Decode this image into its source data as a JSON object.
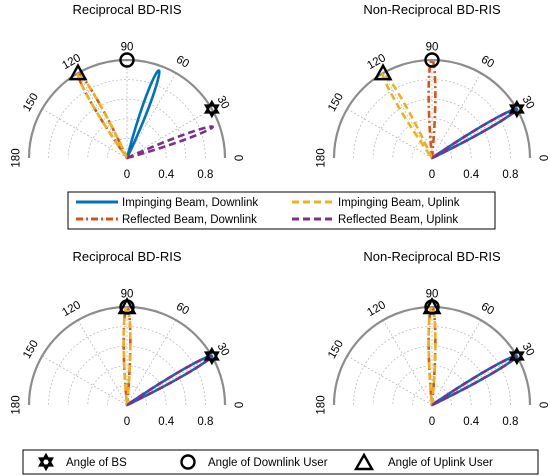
{
  "chart_data": [
    {
      "type": "polar-line",
      "title": "Reciprocal BD-RIS",
      "theta_ticks": [
        "0",
        "30",
        "60",
        "90",
        "120",
        "150",
        "180"
      ],
      "r_ticks": [
        "0",
        "0.4",
        "0.8"
      ],
      "rlim": [
        0,
        1
      ],
      "series": [
        {
          "name": "Impinging Beam, Downlink",
          "color": "#0072BD",
          "dash": "solid",
          "peak_angle_deg": 70,
          "peak_r": 0.95,
          "lobe_width": 0.25
        },
        {
          "name": "Reflected Beam, Downlink",
          "color": "#D95319",
          "dash": "dashdot",
          "peak_angle_deg": 120,
          "peak_r": 1.0,
          "lobe_width": 0.25
        },
        {
          "name": "Impinging Beam, Uplink",
          "color": "#EDB120",
          "dash": "dashed",
          "peak_angle_deg": 120,
          "peak_r": 1.0,
          "lobe_width": 0.25
        },
        {
          "name": "Reflected Beam, Uplink",
          "color": "#7E2F8E",
          "dash": "dashed",
          "peak_angle_deg": 20,
          "peak_r": 0.93,
          "lobe_width": 0.2,
          "double_line": true
        }
      ],
      "markers": {
        "bs_deg": 30,
        "downlink_user_deg": 90,
        "uplink_user_deg": 120
      }
    },
    {
      "type": "polar-line",
      "title": "Non-Reciprocal BD-RIS",
      "theta_ticks": [
        "0",
        "30",
        "60",
        "90",
        "120",
        "150",
        "180"
      ],
      "r_ticks": [
        "0",
        "0.4",
        "0.8"
      ],
      "rlim": [
        0,
        1
      ],
      "series": [
        {
          "name": "Impinging Beam, Downlink",
          "color": "#0072BD",
          "dash": "solid",
          "peak_angle_deg": 30,
          "peak_r": 1.0,
          "lobe_width": 0.2
        },
        {
          "name": "Reflected Beam, Downlink",
          "color": "#D95319",
          "dash": "dashdot",
          "peak_angle_deg": 90,
          "peak_r": 1.0,
          "lobe_width": 0.25
        },
        {
          "name": "Impinging Beam, Uplink",
          "color": "#EDB120",
          "dash": "dashed",
          "peak_angle_deg": 120,
          "peak_r": 1.0,
          "lobe_width": 0.25
        },
        {
          "name": "Reflected Beam, Uplink",
          "color": "#7E2F8E",
          "dash": "dashed",
          "peak_angle_deg": 30,
          "peak_r": 1.0,
          "lobe_width": 0.2
        }
      ],
      "markers": {
        "bs_deg": 30,
        "downlink_user_deg": 90,
        "uplink_user_deg": 120
      }
    },
    {
      "type": "polar-line",
      "title": "Reciprocal BD-RIS",
      "theta_ticks": [
        "0",
        "30",
        "60",
        "90",
        "120",
        "150",
        "180"
      ],
      "r_ticks": [
        "0",
        "0.4",
        "0.8"
      ],
      "rlim": [
        0,
        1
      ],
      "series": [
        {
          "name": "Impinging Beam, Downlink",
          "color": "#0072BD",
          "dash": "solid",
          "peak_angle_deg": 30,
          "peak_r": 1.0,
          "lobe_width": 0.2
        },
        {
          "name": "Reflected Beam, Downlink",
          "color": "#D95319",
          "dash": "dashdot",
          "peak_angle_deg": 90,
          "peak_r": 1.0,
          "lobe_width": 0.25
        },
        {
          "name": "Impinging Beam, Uplink",
          "color": "#EDB120",
          "dash": "dashed",
          "peak_angle_deg": 90,
          "peak_r": 1.0,
          "lobe_width": 0.25
        },
        {
          "name": "Reflected Beam, Uplink",
          "color": "#7E2F8E",
          "dash": "dashed",
          "peak_angle_deg": 30,
          "peak_r": 1.0,
          "lobe_width": 0.2
        }
      ],
      "markers": {
        "bs_deg": 30,
        "downlink_user_deg": 90,
        "uplink_user_deg": 90
      }
    },
    {
      "type": "polar-line",
      "title": "Non-Reciprocal BD-RIS",
      "theta_ticks": [
        "0",
        "30",
        "60",
        "90",
        "120",
        "150",
        "180"
      ],
      "r_ticks": [
        "0",
        "0.4",
        "0.8"
      ],
      "rlim": [
        0,
        1
      ],
      "series": [
        {
          "name": "Impinging Beam, Downlink",
          "color": "#0072BD",
          "dash": "solid",
          "peak_angle_deg": 30,
          "peak_r": 1.0,
          "lobe_width": 0.2
        },
        {
          "name": "Reflected Beam, Downlink",
          "color": "#D95319",
          "dash": "dashdot",
          "peak_angle_deg": 90,
          "peak_r": 1.0,
          "lobe_width": 0.25
        },
        {
          "name": "Impinging Beam, Uplink",
          "color": "#EDB120",
          "dash": "dashed",
          "peak_angle_deg": 90,
          "peak_r": 1.0,
          "lobe_width": 0.25
        },
        {
          "name": "Reflected Beam, Uplink",
          "color": "#7E2F8E",
          "dash": "dashed",
          "peak_angle_deg": 30,
          "peak_r": 1.0,
          "lobe_width": 0.2
        }
      ],
      "markers": {
        "bs_deg": 30,
        "downlink_user_deg": 90,
        "uplink_user_deg": 90
      }
    }
  ],
  "legend_lines": [
    {
      "label": "Impinging Beam, Downlink",
      "color": "#0072BD",
      "dash": "solid"
    },
    {
      "label": "Impinging Beam, Uplink",
      "color": "#EDB120",
      "dash": "dashed"
    },
    {
      "label": "Reflected Beam, Downlink",
      "color": "#D95319",
      "dash": "dashdot"
    },
    {
      "label": "Reflected Beam, Uplink",
      "color": "#7E2F8E",
      "dash": "dashed"
    }
  ],
  "legend_markers": [
    {
      "label": "Angle of BS",
      "icon": "hexagram-icon"
    },
    {
      "label": "Angle of Downlink User",
      "icon": "circle-icon"
    },
    {
      "label": "Angle of Uplink User",
      "icon": "triangle-icon"
    }
  ]
}
